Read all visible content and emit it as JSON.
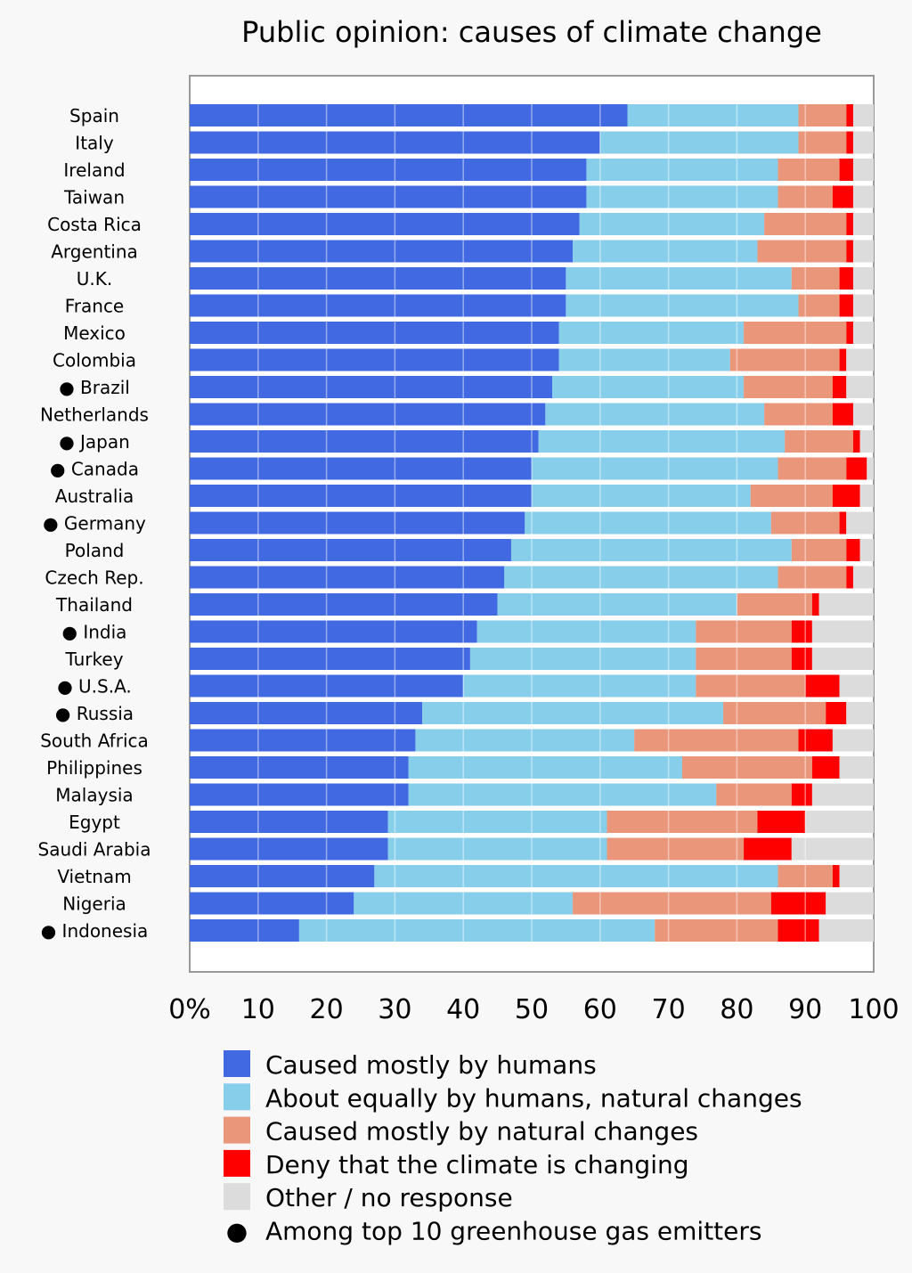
{
  "chart_data": {
    "type": "bar",
    "orientation": "horizontal",
    "stacked": true,
    "title": "Public opinion: causes of climate change",
    "xlim": [
      0,
      100
    ],
    "x_ticks": [
      "0%",
      "10",
      "20",
      "30",
      "40",
      "50",
      "60",
      "70",
      "80",
      "90",
      "100"
    ],
    "grid": true,
    "legend_position": "bottom",
    "categories": [
      {
        "name": "Spain",
        "top_emitter": false
      },
      {
        "name": "Italy",
        "top_emitter": false
      },
      {
        "name": "Ireland",
        "top_emitter": false
      },
      {
        "name": "Taiwan",
        "top_emitter": false
      },
      {
        "name": "Costa Rica",
        "top_emitter": false
      },
      {
        "name": "Argentina",
        "top_emitter": false
      },
      {
        "name": "U.K.",
        "top_emitter": false
      },
      {
        "name": "France",
        "top_emitter": false
      },
      {
        "name": "Mexico",
        "top_emitter": false
      },
      {
        "name": "Colombia",
        "top_emitter": false
      },
      {
        "name": "Brazil",
        "top_emitter": true
      },
      {
        "name": "Netherlands",
        "top_emitter": false
      },
      {
        "name": "Japan",
        "top_emitter": true
      },
      {
        "name": "Canada",
        "top_emitter": true
      },
      {
        "name": "Australia",
        "top_emitter": false
      },
      {
        "name": "Germany",
        "top_emitter": true
      },
      {
        "name": "Poland",
        "top_emitter": false
      },
      {
        "name": "Czech Rep.",
        "top_emitter": false
      },
      {
        "name": "Thailand",
        "top_emitter": false
      },
      {
        "name": "India",
        "top_emitter": true
      },
      {
        "name": "Turkey",
        "top_emitter": false
      },
      {
        "name": "U.S.A.",
        "top_emitter": true
      },
      {
        "name": "Russia",
        "top_emitter": true
      },
      {
        "name": "South Africa",
        "top_emitter": false
      },
      {
        "name": "Philippines",
        "top_emitter": false
      },
      {
        "name": "Malaysia",
        "top_emitter": false
      },
      {
        "name": "Egypt",
        "top_emitter": false
      },
      {
        "name": "Saudi Arabia",
        "top_emitter": false
      },
      {
        "name": "Vietnam",
        "top_emitter": false
      },
      {
        "name": "Nigeria",
        "top_emitter": false
      },
      {
        "name": "Indonesia",
        "top_emitter": true
      }
    ],
    "series": [
      {
        "name": "Caused mostly by humans",
        "color": "#4169e1",
        "values": [
          64,
          60,
          58,
          58,
          57,
          56,
          55,
          55,
          54,
          54,
          53,
          52,
          51,
          50,
          50,
          49,
          47,
          46,
          45,
          42,
          41,
          40,
          34,
          33,
          32,
          32,
          29,
          29,
          27,
          24,
          16
        ]
      },
      {
        "name": "About equally by humans, natural changes",
        "color": "#87ceeb",
        "values": [
          25,
          29,
          28,
          28,
          27,
          27,
          33,
          34,
          27,
          25,
          28,
          32,
          36,
          36,
          32,
          36,
          41,
          40,
          35,
          32,
          33,
          34,
          44,
          32,
          40,
          45,
          32,
          32,
          59,
          32,
          52
        ]
      },
      {
        "name": "Caused mostly by natural changes",
        "color": "#e9967a",
        "values": [
          7,
          7,
          9,
          8,
          12,
          13,
          7,
          6,
          15,
          16,
          13,
          10,
          10,
          10,
          12,
          10,
          8,
          10,
          11,
          14,
          14,
          16,
          15,
          24,
          19,
          11,
          22,
          20,
          8,
          29,
          18
        ]
      },
      {
        "name": "Deny that the climate is changing",
        "color": "#ff0000",
        "values": [
          1,
          1,
          2,
          3,
          1,
          1,
          2,
          2,
          1,
          1,
          2,
          3,
          1,
          3,
          4,
          1,
          2,
          1,
          1,
          3,
          3,
          5,
          3,
          5,
          4,
          3,
          7,
          7,
          1,
          8,
          6
        ]
      },
      {
        "name": "Other / no response",
        "color": "#dcdcdc",
        "values": [
          3,
          3,
          3,
          3,
          3,
          3,
          3,
          3,
          3,
          4,
          4,
          3,
          2,
          1,
          2,
          4,
          2,
          3,
          8,
          9,
          9,
          5,
          4,
          6,
          5,
          9,
          10,
          12,
          5,
          7,
          8
        ]
      }
    ],
    "legend_extra": {
      "label": "Among top 10 greenhouse gas emitters",
      "marker": "●"
    }
  }
}
